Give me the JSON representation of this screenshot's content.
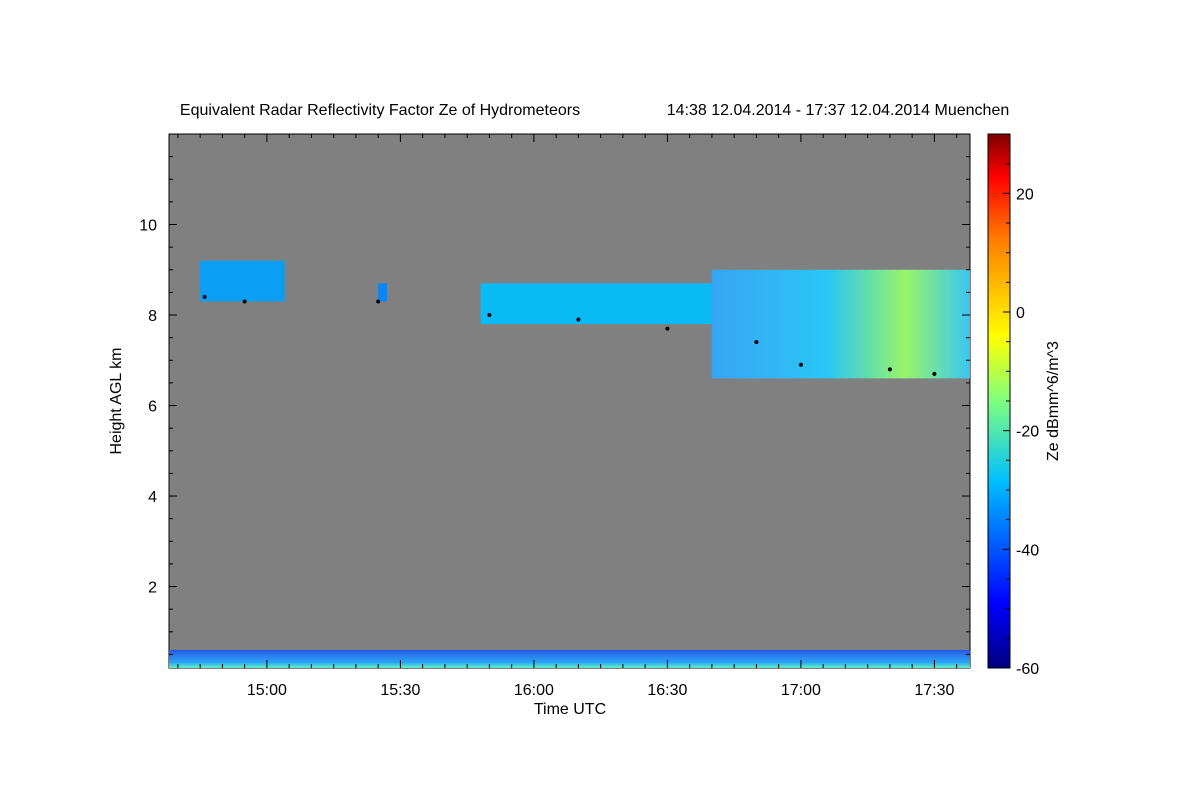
{
  "chart_data": {
    "type": "heatmap",
    "title": "Equivalent Radar Reflectivity Factor Ze of Hydrometeors",
    "subtitle": "14:38 12.04.2014 - 17:37 12.04.2014 Muenchen",
    "xlabel": "Time UTC",
    "ylabel": "Height AGL km",
    "colorbar_label": "Ze dBmm^6/m^3",
    "xlim_minutes_utc": [
      878,
      1058
    ],
    "ylim": [
      0.2,
      12.0
    ],
    "x_ticks": [
      {
        "value": 900,
        "label": "15:00"
      },
      {
        "value": 930,
        "label": "15:30"
      },
      {
        "value": 960,
        "label": "16:00"
      },
      {
        "value": 990,
        "label": "16:30"
      },
      {
        "value": 1020,
        "label": "17:00"
      },
      {
        "value": 1050,
        "label": "17:30"
      }
    ],
    "y_ticks": [
      {
        "value": 2,
        "label": "2"
      },
      {
        "value": 4,
        "label": "4"
      },
      {
        "value": 6,
        "label": "6"
      },
      {
        "value": 8,
        "label": "8"
      },
      {
        "value": 10,
        "label": "10"
      }
    ],
    "colorbar_range": [
      -60,
      30
    ],
    "colorbar_ticks": [
      {
        "value": 20,
        "label": "20"
      },
      {
        "value": 0,
        "label": "0"
      },
      {
        "value": -20,
        "label": "-20"
      },
      {
        "value": -40,
        "label": "-40"
      },
      {
        "value": -60,
        "label": "-60"
      }
    ],
    "background_color": "#808080",
    "cloud_regions": [
      {
        "name": "cirrus-patch-1500",
        "t_start": 885,
        "t_end": 904,
        "base_km": 8.3,
        "top_km": 9.2,
        "ze_dbz": -33
      },
      {
        "name": "cirrus-patch-1525",
        "t_start": 925,
        "t_end": 927,
        "base_km": 8.3,
        "top_km": 8.7,
        "ze_dbz": -36
      },
      {
        "name": "cirrus-deck-1600",
        "t_start": 948,
        "t_end": 1000,
        "base_km": 7.8,
        "top_km": 8.7,
        "ze_dbz": -30
      },
      {
        "name": "cirrus-deck-1700",
        "t_start": 1000,
        "t_end": 1058,
        "base_km": 6.6,
        "top_km": 9.0,
        "ze_dbz": -20
      },
      {
        "name": "low-clutter",
        "t_start": 878,
        "t_end": 1058,
        "base_km": 0.2,
        "top_km": 0.6,
        "ze_dbz": -40
      }
    ],
    "cloud_base_detections": [
      {
        "t": 886,
        "h": 8.4
      },
      {
        "t": 895,
        "h": 8.3
      },
      {
        "t": 925,
        "h": 8.3
      },
      {
        "t": 950,
        "h": 8.0
      },
      {
        "t": 970,
        "h": 7.9
      },
      {
        "t": 990,
        "h": 7.7
      },
      {
        "t": 1010,
        "h": 7.4
      },
      {
        "t": 1020,
        "h": 6.9
      },
      {
        "t": 1040,
        "h": 6.8
      },
      {
        "t": 1050,
        "h": 6.7
      }
    ]
  }
}
